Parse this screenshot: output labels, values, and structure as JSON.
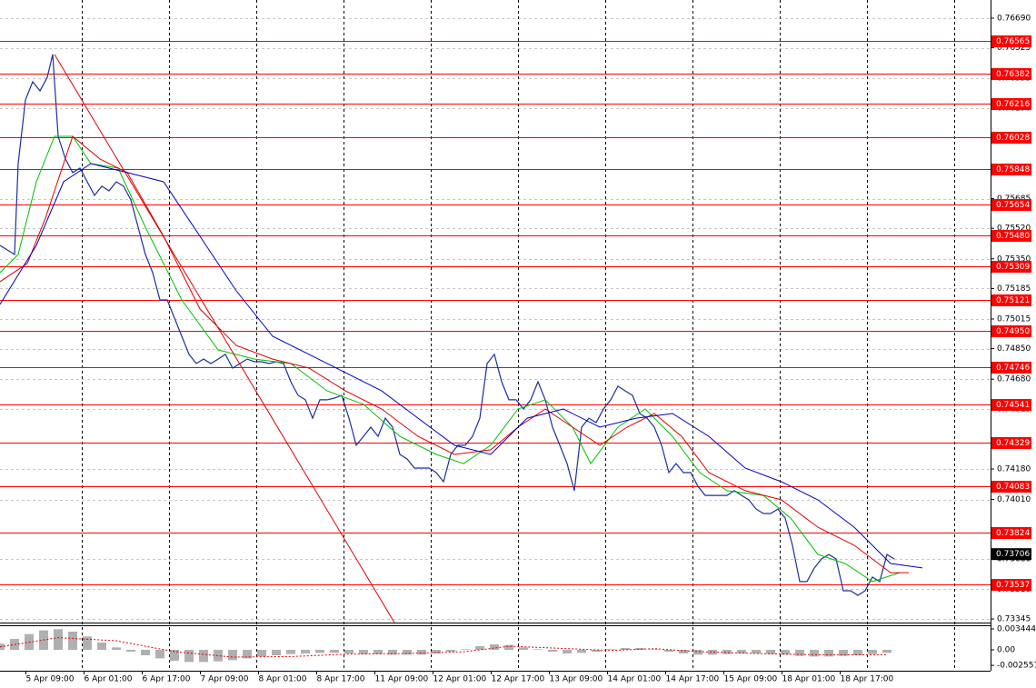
{
  "chart_data": {
    "type": "line",
    "xlim": [
      0,
      272
    ],
    "ylim": [
      0.73325,
      0.76791
    ],
    "grid": true,
    "yticks": [
      {
        "value": 0.7669,
        "label": "0.76690"
      },
      {
        "value": 0.76525,
        "label": "0.76525"
      },
      {
        "value": 0.76355,
        "label": "0.76355"
      },
      {
        "value": 0.7619,
        "label": "0.76190"
      },
      {
        "value": 0.7585,
        "label": "0.75850"
      },
      {
        "value": 0.75685,
        "label": "0.75685"
      },
      {
        "value": 0.7552,
        "label": "0.75520"
      },
      {
        "value": 0.7535,
        "label": "0.75350"
      },
      {
        "value": 0.75185,
        "label": "0.75185"
      },
      {
        "value": 0.75015,
        "label": "0.75015"
      },
      {
        "value": 0.7485,
        "label": "0.74850"
      },
      {
        "value": 0.7468,
        "label": "0.74680"
      },
      {
        "value": 0.74515,
        "label": "0.74515"
      },
      {
        "value": 0.7418,
        "label": "0.74180"
      },
      {
        "value": 0.7401,
        "label": "0.74010"
      },
      {
        "value": 0.7368,
        "label": "0.73680"
      },
      {
        "value": 0.7351,
        "label": "0.73510"
      },
      {
        "value": 0.73345,
        "label": "0.73345"
      }
    ],
    "xticks": [
      {
        "value": 7,
        "label": "5 Apr 09:00"
      },
      {
        "value": 23,
        "label": "6 Apr 01:00"
      },
      {
        "value": 39,
        "label": "6 Apr 17:00"
      },
      {
        "value": 55,
        "label": "7 Apr 09:00"
      },
      {
        "value": 71,
        "label": "8 Apr 01:00"
      },
      {
        "value": 87,
        "label": "8 Apr 17:00"
      },
      {
        "value": 103,
        "label": "11 Apr 09:00"
      },
      {
        "value": 119,
        "label": "12 Apr 01:00"
      },
      {
        "value": 135,
        "label": "12 Apr 17:00"
      },
      {
        "value": 151,
        "label": "13 Apr 09:00"
      },
      {
        "value": 167,
        "label": "14 Apr 01:00"
      },
      {
        "value": 183,
        "label": "14 Apr 17:00"
      },
      {
        "value": 199,
        "label": "15 Apr 09:00"
      },
      {
        "value": 215,
        "label": "18 Apr 01:00"
      },
      {
        "value": 231,
        "label": "18 Apr 17:00"
      }
    ],
    "x_grid": [
      22.5,
      46.5,
      70.5,
      94.5,
      118.5,
      142.5,
      166.5,
      190.5,
      214.5,
      238.5,
      262.5
    ],
    "level_color": "#ff0000",
    "levels": [
      {
        "value": 0.76565,
        "label": "0.76565"
      },
      {
        "value": 0.76382,
        "label": "0.76382"
      },
      {
        "value": 0.76216,
        "label": "0.76216"
      },
      {
        "value": 0.76028,
        "label": "0.76028"
      },
      {
        "value": 0.75848,
        "label": "0.75848"
      },
      {
        "value": 0.75654,
        "label": "0.75654"
      },
      {
        "value": 0.7548,
        "label": "0.75480"
      },
      {
        "value": 0.75309,
        "label": "0.75309"
      },
      {
        "value": 0.75121,
        "label": "0.75121"
      },
      {
        "value": 0.7495,
        "label": "0.74950"
      },
      {
        "value": 0.74746,
        "label": "0.74746"
      },
      {
        "value": 0.74541,
        "label": "0.74541"
      },
      {
        "value": 0.74329,
        "label": "0.74329"
      },
      {
        "value": 0.74083,
        "label": "0.74083"
      },
      {
        "value": 0.73824,
        "label": "0.73824"
      },
      {
        "value": 0.73537,
        "label": "0.73537"
      }
    ],
    "current_price": {
      "value": 0.73706,
      "label": "0.73706"
    },
    "series": [
      {
        "color": "#1c2f9a",
        "x": [
          0,
          4,
          5,
          7,
          9,
          11,
          13,
          14.5,
          16,
          18,
          20,
          22,
          24,
          26,
          28,
          30,
          32,
          34,
          36,
          38,
          40,
          42,
          44,
          46,
          48,
          50,
          52,
          54,
          56,
          58,
          60,
          62,
          64,
          66,
          68,
          70,
          72,
          74,
          76,
          78,
          80,
          82,
          84,
          86,
          88,
          90,
          92,
          94,
          96,
          98,
          100,
          102,
          104,
          106,
          108,
          110,
          112,
          114,
          116,
          118,
          120,
          122,
          124,
          126,
          128,
          130,
          132,
          134,
          136,
          138,
          140,
          142,
          144,
          146,
          148,
          150,
          152,
          154,
          156,
          158,
          160,
          162,
          164,
          166,
          168,
          170,
          172,
          174,
          176,
          178,
          180,
          182,
          184,
          186,
          188,
          190,
          192,
          194,
          196,
          198,
          200,
          202,
          204,
          206,
          208,
          210,
          212,
          214,
          216,
          218,
          220,
          222,
          224,
          226,
          228,
          230,
          232,
          234,
          236,
          238,
          240,
          242,
          244,
          246
        ],
        "values": [
          0.75425,
          0.75374,
          0.7588,
          0.76235,
          0.76336,
          0.76285,
          0.76361,
          0.76488,
          0.76032,
          0.75906,
          0.7583,
          0.75855,
          0.75779,
          0.75703,
          0.75754,
          0.75729,
          0.75779,
          0.75754,
          0.75678,
          0.75526,
          0.75374,
          0.75273,
          0.75121,
          0.75121,
          0.7502,
          0.74919,
          0.74818,
          0.74767,
          0.74792,
          0.74767,
          0.74792,
          0.74818,
          0.74742,
          0.74767,
          0.74792,
          0.74777,
          0.74777,
          0.74767,
          0.74777,
          0.74767,
          0.74666,
          0.7459,
          0.74565,
          0.74463,
          0.74565,
          0.74565,
          0.74575,
          0.7459,
          0.74463,
          0.74312,
          0.74362,
          0.74413,
          0.74362,
          0.74463,
          0.74413,
          0.74261,
          0.74236,
          0.74185,
          0.74185,
          0.74185,
          0.7416,
          0.74109,
          0.74261,
          0.74312,
          0.74312,
          0.74362,
          0.74463,
          0.74767,
          0.74818,
          0.74666,
          0.74565,
          0.74565,
          0.74514,
          0.74565,
          0.74666,
          0.74565,
          0.74413,
          0.74312,
          0.7421,
          0.74059,
          0.74413,
          0.74463,
          0.74438,
          0.74514,
          0.74565,
          0.74641,
          0.74615,
          0.7459,
          0.74489,
          0.74463,
          0.74413,
          0.74312,
          0.7416,
          0.7421,
          0.7416,
          0.7416,
          0.74084,
          0.74033,
          0.74033,
          0.74033,
          0.74033,
          0.74059,
          0.74033,
          0.74008,
          0.73957,
          0.73932,
          0.73932,
          0.73957,
          0.73907,
          0.73755,
          0.73553,
          0.73553,
          0.73628,
          0.73679,
          0.73704,
          0.73679,
          0.73502,
          0.73502,
          0.73477,
          0.73502,
          0.73578,
          0.73553,
          0.73704,
          0.73679
        ]
      },
      {
        "color": "#00c000",
        "x": [
          0,
          5,
          10,
          15,
          20,
          25,
          32.5,
          40,
          50,
          60,
          70,
          80,
          90,
          100,
          110,
          120,
          127.5,
          135,
          142.5,
          150,
          157.5,
          162.5,
          170,
          177.5,
          185,
          192.5,
          200,
          210,
          217.5,
          225,
          232.5,
          240,
          247.5
        ],
        "values": [
          0.75273,
          0.75374,
          0.75779,
          0.76032,
          0.76032,
          0.7588,
          0.75855,
          0.75526,
          0.75121,
          0.74843,
          0.74792,
          0.74767,
          0.74615,
          0.7454,
          0.74362,
          0.74261,
          0.7421,
          0.74312,
          0.74514,
          0.74565,
          0.74413,
          0.7421,
          0.74413,
          0.74514,
          0.74362,
          0.7416,
          0.74059,
          0.74033,
          0.73907,
          0.73704,
          0.73654,
          0.73553,
          0.73603
        ]
      },
      {
        "color": "#e00000",
        "x": [
          0,
          7.5,
          12.5,
          20,
          27.5,
          35,
          45,
          55,
          65,
          75,
          85,
          95,
          105,
          115,
          125,
          135,
          142.5,
          150,
          157.5,
          165,
          172.5,
          180,
          187.5,
          195,
          205,
          215,
          225,
          235,
          245,
          250
        ],
        "values": [
          0.75223,
          0.75324,
          0.75577,
          0.76032,
          0.75906,
          0.7583,
          0.75476,
          0.75071,
          0.74868,
          0.74792,
          0.74742,
          0.74615,
          0.74514,
          0.74362,
          0.74261,
          0.74287,
          0.74413,
          0.74514,
          0.74413,
          0.74312,
          0.74413,
          0.74489,
          0.74362,
          0.7416,
          0.74059,
          0.74008,
          0.73856,
          0.73755,
          0.73603,
          0.73603
        ]
      },
      {
        "color": "#0000c0",
        "x": [
          0,
          10,
          17.5,
          25,
          35,
          45,
          55,
          65,
          75,
          85,
          95,
          105,
          115,
          125,
          135,
          145,
          155,
          165,
          175,
          185,
          195,
          205,
          215,
          225,
          235,
          245,
          253.75
        ],
        "values": [
          0.75096,
          0.75425,
          0.75779,
          0.7588,
          0.7583,
          0.75779,
          0.75476,
          0.75172,
          0.74919,
          0.74818,
          0.74717,
          0.74615,
          0.74463,
          0.74312,
          0.74261,
          0.74463,
          0.74514,
          0.74413,
          0.74463,
          0.74489,
          0.74362,
          0.74185,
          0.74109,
          0.74008,
          0.73856,
          0.73654,
          0.73629
        ]
      }
    ],
    "trendline": {
      "color": "#e00000",
      "x": [
        15,
        108.5
      ],
      "values": [
        0.76488,
        0.73325
      ]
    },
    "oscillator": {
      "ylim": [
        -0.00344,
        0.00404
      ],
      "yticks": [
        {
          "value": 0.003444,
          "label": "0.003444"
        },
        {
          "value": 0,
          "label": "0.00"
        },
        {
          "value": -0.002557,
          "label": "-0.002557"
        }
      ],
      "histogram": {
        "color": "#b0b0b0",
        "x": [
          0,
          4,
          8,
          12,
          16,
          20,
          24,
          28,
          32,
          36,
          40,
          44,
          48,
          52,
          56,
          60,
          64,
          68,
          72,
          76,
          80,
          84,
          88,
          92,
          96,
          100,
          104,
          108,
          112,
          116,
          120,
          124,
          128,
          132,
          136,
          140,
          144,
          148,
          152,
          156,
          160,
          164,
          168,
          172,
          176,
          180,
          184,
          188,
          192,
          196,
          200,
          204,
          208,
          212,
          216,
          220,
          224,
          228,
          232,
          236,
          240,
          244
        ],
        "values": [
          0.001,
          0.0018,
          0.0026,
          0.0032,
          0.0034,
          0.003,
          0.0022,
          0.0012,
          0.0004,
          -0.0003,
          -0.0009,
          -0.0014,
          -0.0018,
          -0.002,
          -0.002,
          -0.0019,
          -0.0017,
          -0.0014,
          -0.0011,
          -0.0009,
          -0.0007,
          -0.0006,
          -0.0005,
          -0.0005,
          -0.0006,
          -0.0007,
          -0.0007,
          -0.0008,
          -0.0008,
          -0.0008,
          -0.0006,
          -0.0003,
          0.0001,
          0.0006,
          0.0009,
          0.0008,
          0.0004,
          0.0001,
          -0.0003,
          -0.0006,
          -0.0005,
          -0.0003,
          0.0001,
          0.0003,
          0.0003,
          0.0001,
          -0.0003,
          -0.0006,
          -0.0008,
          -0.0008,
          -0.0007,
          -0.0006,
          -0.0006,
          -0.0007,
          -0.0008,
          -0.001,
          -0.0011,
          -0.0011,
          -0.001,
          -0.0009,
          -0.0007,
          -0.0005
        ]
      },
      "signal": {
        "color": "#e00000",
        "x": [
          0,
          16,
          32,
          48,
          64,
          80,
          96,
          112,
          128,
          140,
          152,
          168,
          180,
          192,
          208,
          224,
          244
        ],
        "values": [
          0.0005,
          0.002,
          0.0015,
          -0.0003,
          -0.0012,
          -0.0011,
          -0.0007,
          -0.0006,
          -0.0003,
          0.0006,
          0.0003,
          -0.0001,
          0.0002,
          -0.0003,
          -0.0006,
          -0.0008,
          -0.0008
        ]
      }
    }
  }
}
